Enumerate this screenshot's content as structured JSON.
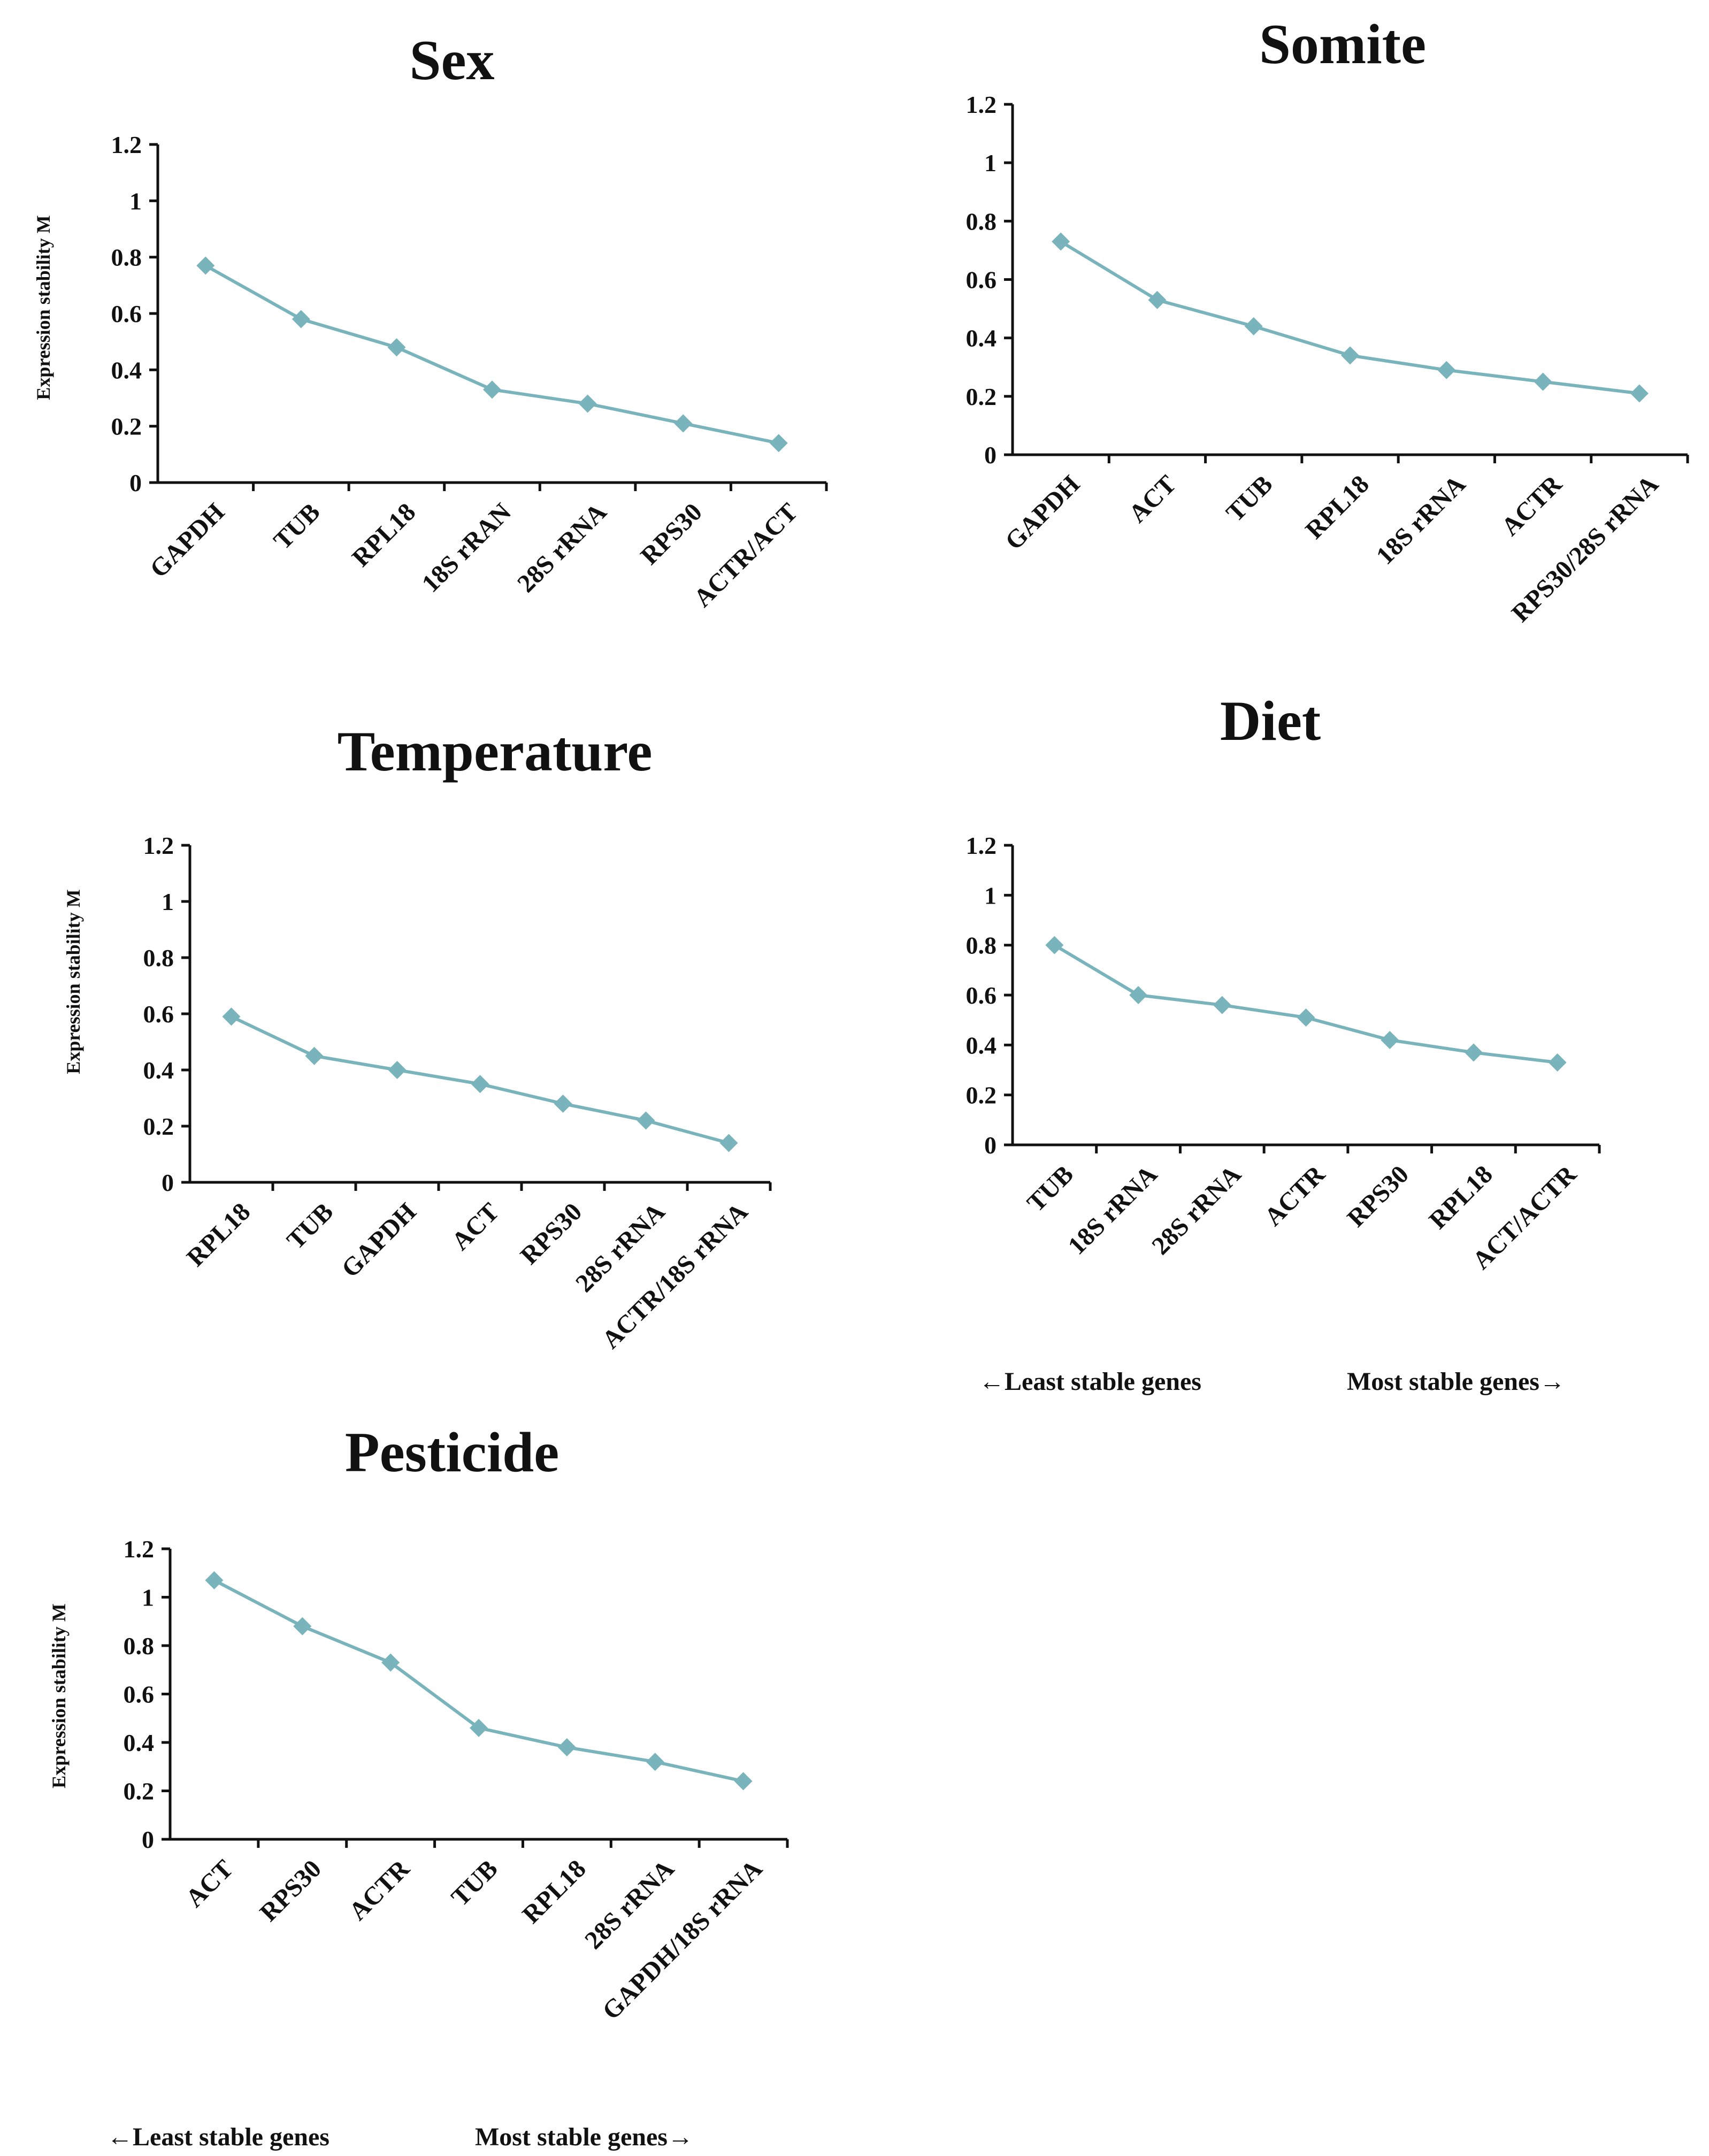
{
  "colors": {
    "series": "#79b4bc",
    "axis": "#111111"
  },
  "chart_data": [
    {
      "id": "sex",
      "type": "line",
      "title": "Sex",
      "ylabel": "Expression stability M",
      "xlabel": "",
      "ylim": [
        0,
        1.2
      ],
      "yticks": [
        "0",
        "0.2",
        "0.4",
        "0.6",
        "0.8",
        "1",
        "1.2"
      ],
      "categories": [
        "GAPDH",
        "TUB",
        "RPL18",
        "18S rRAN",
        "28S rRNA",
        "RPS30",
        "ACTR/ACT"
      ],
      "values": [
        0.77,
        0.58,
        0.48,
        0.33,
        0.28,
        0.21,
        0.14
      ],
      "grid": false,
      "marker": "diamond"
    },
    {
      "id": "somite",
      "type": "line",
      "title": "Somite",
      "ylabel": "",
      "xlabel": "",
      "ylim": [
        0,
        1.2
      ],
      "yticks": [
        "0",
        "0.2",
        "0.4",
        "0.6",
        "0.8",
        "1",
        "1.2"
      ],
      "categories": [
        "GAPDH",
        "ACT",
        "TUB",
        "RPL18",
        "18S rRNA",
        "ACTR",
        "RPS30/28S rRNA"
      ],
      "values": [
        0.73,
        0.53,
        0.44,
        0.34,
        0.29,
        0.25,
        0.21
      ],
      "grid": false,
      "marker": "diamond"
    },
    {
      "id": "temperature",
      "type": "line",
      "title": "Temperature",
      "ylabel": "Expression stability M",
      "xlabel": "",
      "ylim": [
        0,
        1.2
      ],
      "yticks": [
        "0",
        "0.2",
        "0.4",
        "0.6",
        "0.8",
        "1",
        "1.2"
      ],
      "categories": [
        "RPL18",
        "TUB",
        "GAPDH",
        "ACT",
        "RPS30",
        "28S rRNA",
        "ACTR/18S rRNA"
      ],
      "values": [
        0.59,
        0.45,
        0.4,
        0.35,
        0.28,
        0.22,
        0.14
      ],
      "grid": false,
      "marker": "diamond"
    },
    {
      "id": "diet",
      "type": "line",
      "title": "Diet",
      "ylabel": "",
      "xlabel": "",
      "ylim": [
        0,
        1.2
      ],
      "yticks": [
        "0",
        "0.2",
        "0.4",
        "0.6",
        "0.8",
        "1",
        "1.2"
      ],
      "categories": [
        "TUB",
        "18S rRNA",
        "28S rRNA",
        "ACTR",
        "RPS30",
        "RPL18",
        "ACT/ACTR"
      ],
      "values": [
        0.8,
        0.6,
        0.56,
        0.51,
        0.42,
        0.37,
        0.33
      ],
      "grid": false,
      "marker": "diamond"
    },
    {
      "id": "pesticide",
      "type": "line",
      "title": "Pesticide",
      "ylabel": "Expression stability M",
      "xlabel": "",
      "ylim": [
        0,
        1.2
      ],
      "yticks": [
        "0",
        "0.2",
        "0.4",
        "0.6",
        "0.8",
        "1",
        "1.2"
      ],
      "categories": [
        "ACT",
        "RPS30",
        "ACTR",
        "TUB",
        "RPL18",
        "28S rRNA",
        "GAPDH/18S rRNA"
      ],
      "values": [
        1.07,
        0.88,
        0.73,
        0.46,
        0.38,
        0.32,
        0.24
      ],
      "grid": false,
      "marker": "diamond"
    }
  ],
  "captions": {
    "diet_least": "←Least stable genes",
    "diet_most": "Most stable genes→",
    "pesticide_least": "←Least stable genes",
    "pesticide_most": "Most stable genes→"
  }
}
